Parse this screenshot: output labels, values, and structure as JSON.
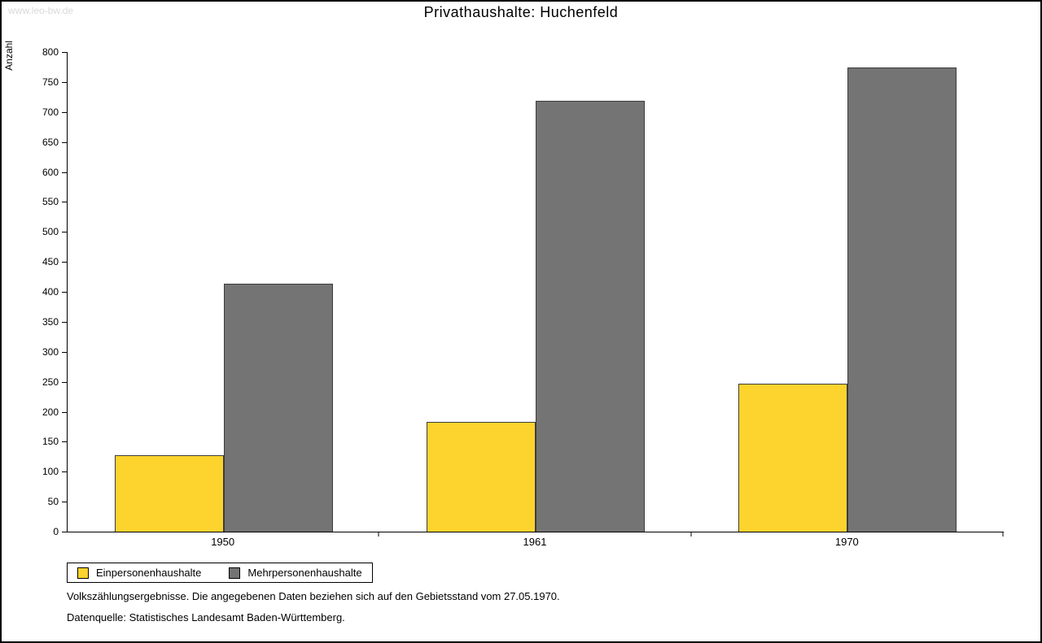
{
  "watermark": "www.leo-bw.de",
  "title": "Privathaushalte: Huchenfeld",
  "chart_data": {
    "type": "bar",
    "title": "Privathaushalte: Huchenfeld",
    "categories": [
      "1950",
      "1961",
      "1970"
    ],
    "series": [
      {
        "name": "Einpersonenhaushalte",
        "color": "#fcd42d",
        "values": [
          127,
          183,
          247
        ]
      },
      {
        "name": "Mehrpersonenhaushalte",
        "color": "#747474",
        "values": [
          413,
          719,
          774
        ]
      }
    ],
    "xlabel": "",
    "ylabel": "Anzahl",
    "ylim": [
      0,
      800
    ],
    "ytick_step": 50,
    "grid": false,
    "legend_position": "bottom-left"
  },
  "footnotes": [
    "Volkszählungsergebnisse. Die angegebenen Daten beziehen sich auf den Gebietsstand vom 27.05.1970.",
    "Datenquelle: Statistisches Landesamt Baden-Württemberg."
  ]
}
